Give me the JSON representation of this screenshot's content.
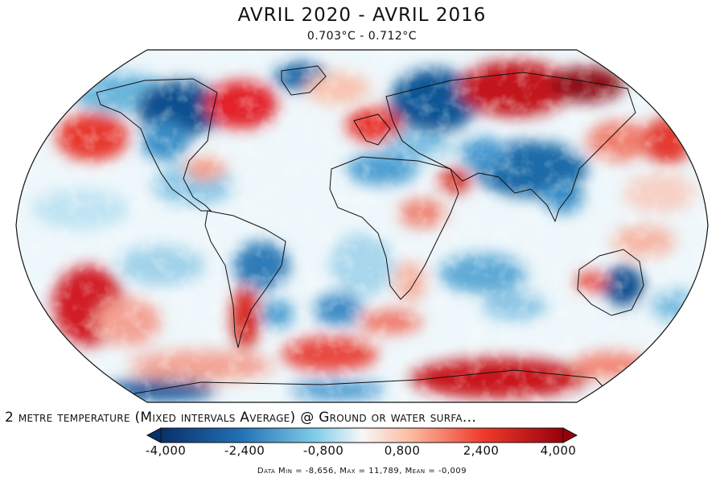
{
  "map": {
    "title": "AVRIL 2020 - AVRIL 2016",
    "subtitle": "0.703°C - 0.712°C",
    "variable_label": "2 metre temperature (Mixed intervals Average) @ Ground or water surfa...",
    "stats_label": "Data Min = -8,656, Max = 11,789, Mean = -0,009",
    "projection": "robinson-like world map",
    "colormap": {
      "cold": "#08306b",
      "mid_cold": "#2c7fb8",
      "light_cold": "#bfe6f3",
      "neutral": "#f7f7f7",
      "light_warm": "#fdd0c2",
      "mid_warm": "#ef3b2c",
      "warm": "#99000d"
    }
  },
  "colorbar": {
    "ticks": [
      "-4,000",
      "-2,400",
      "-0,800",
      "0,800",
      "2,400",
      "4,000"
    ],
    "min": -4,
    "max": 4,
    "extend": "both"
  }
}
